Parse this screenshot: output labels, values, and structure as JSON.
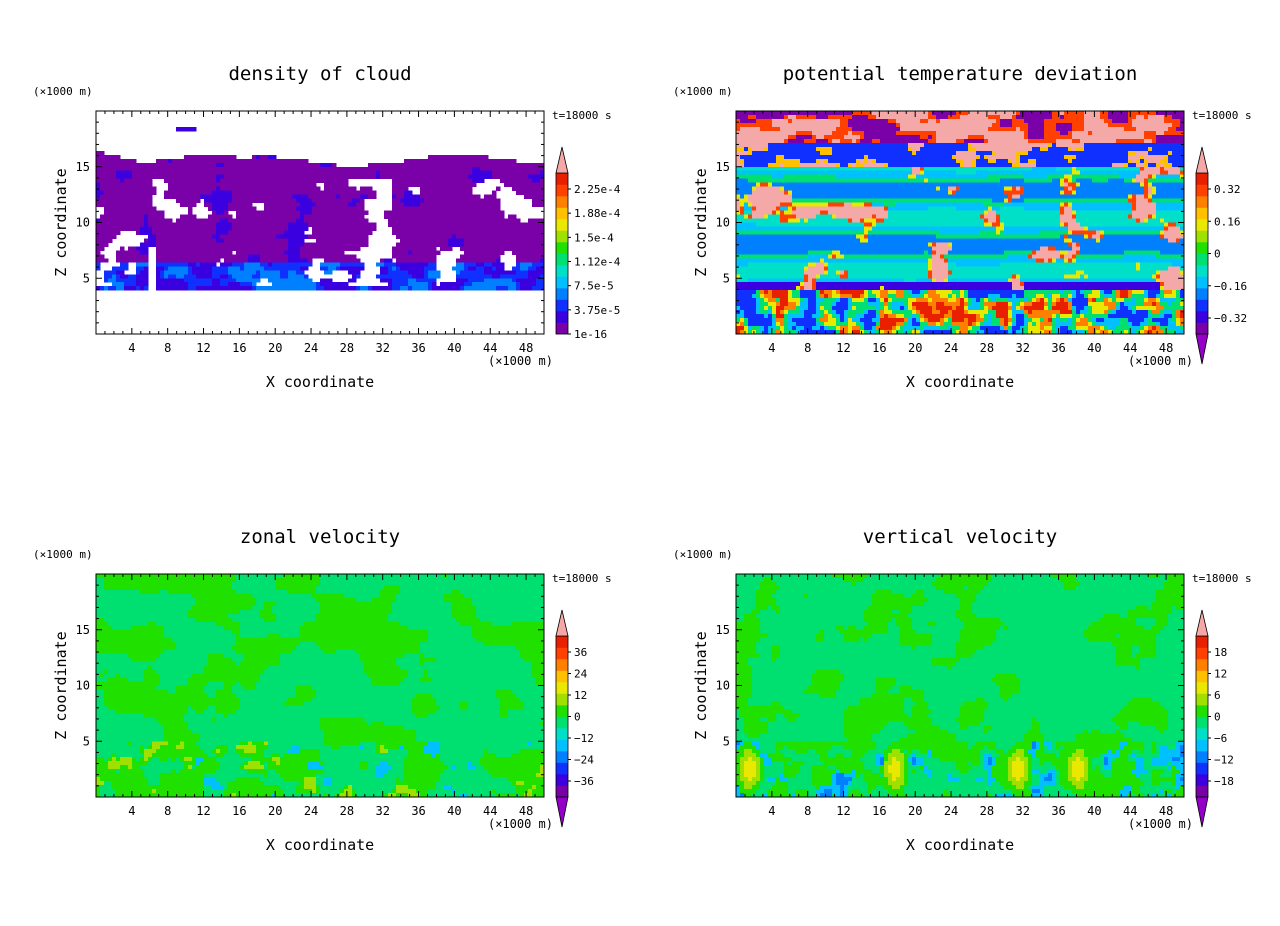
{
  "colors": {
    "scale": [
      "#7a00a8",
      "#3a00e0",
      "#1030ff",
      "#0080ff",
      "#00c0ff",
      "#00e0c8",
      "#00e070",
      "#20e000",
      "#a0e000",
      "#e8e800",
      "#ffc000",
      "#ff8000",
      "#ff4000",
      "#e82000",
      "#f4a8a8"
    ]
  },
  "chart_data": [
    {
      "type": "heatmap",
      "title": "density of cloud",
      "xlabel": "X coordinate",
      "ylabel": "Z coordinate",
      "x_unit": "(×1000 m)",
      "y_unit": "(×1000 m)",
      "time_label": "t=18000 s",
      "xlim": [
        0,
        50
      ],
      "ylim": [
        0,
        20
      ],
      "xticks": [
        4,
        8,
        12,
        16,
        20,
        24,
        28,
        32,
        36,
        40,
        44,
        48
      ],
      "yticks": [
        5,
        10,
        15
      ],
      "colorbar_labels": [
        "2.25e-4",
        "1.88e-4",
        "1.5e-4",
        "1.12e-4",
        "7.5e-5",
        "3.75e-5",
        "1e-16"
      ],
      "field": {
        "kind": "cloud",
        "palette": [
          0,
          1,
          2,
          3
        ]
      }
    },
    {
      "type": "heatmap",
      "title": "potential temperature deviation",
      "xlabel": "X coordinate",
      "ylabel": "Z coordinate",
      "x_unit": "(×1000 m)",
      "y_unit": "(×1000 m)",
      "time_label": "t=18000 s",
      "xlim": [
        0,
        50
      ],
      "ylim": [
        0,
        20
      ],
      "xticks": [
        4,
        8,
        12,
        16,
        20,
        24,
        28,
        32,
        36,
        40,
        44,
        48
      ],
      "yticks": [
        5,
        10,
        15
      ],
      "colorbar_labels": [
        "0.32",
        "0.16",
        "0",
        "−0.16",
        "−0.32"
      ],
      "field": {
        "kind": "theta"
      }
    },
    {
      "type": "heatmap",
      "title": "zonal velocity",
      "xlabel": "X coordinate",
      "ylabel": "Z coordinate",
      "x_unit": "(×1000 m)",
      "y_unit": "(×1000 m)",
      "time_label": "t=18000 s",
      "xlim": [
        0,
        50
      ],
      "ylim": [
        0,
        20
      ],
      "xticks": [
        4,
        8,
        12,
        16,
        20,
        24,
        28,
        32,
        36,
        40,
        44,
        48
      ],
      "yticks": [
        5,
        10,
        15
      ],
      "colorbar_labels": [
        "36",
        "24",
        "12",
        "0",
        "−12",
        "−24",
        "−36"
      ],
      "field": {
        "kind": "zonal"
      }
    },
    {
      "type": "heatmap",
      "title": "vertical velocity",
      "xlabel": "X coordinate",
      "ylabel": "Z coordinate",
      "x_unit": "(×1000 m)",
      "y_unit": "(×1000 m)",
      "time_label": "t=18000 s",
      "xlim": [
        0,
        50
      ],
      "ylim": [
        0,
        20
      ],
      "xticks": [
        4,
        8,
        12,
        16,
        20,
        24,
        28,
        32,
        36,
        40,
        44,
        48
      ],
      "yticks": [
        5,
        10,
        15
      ],
      "colorbar_labels": [
        "18",
        "12",
        "6",
        "0",
        "−6",
        "−12",
        "−18"
      ],
      "field": {
        "kind": "vertical"
      }
    }
  ]
}
